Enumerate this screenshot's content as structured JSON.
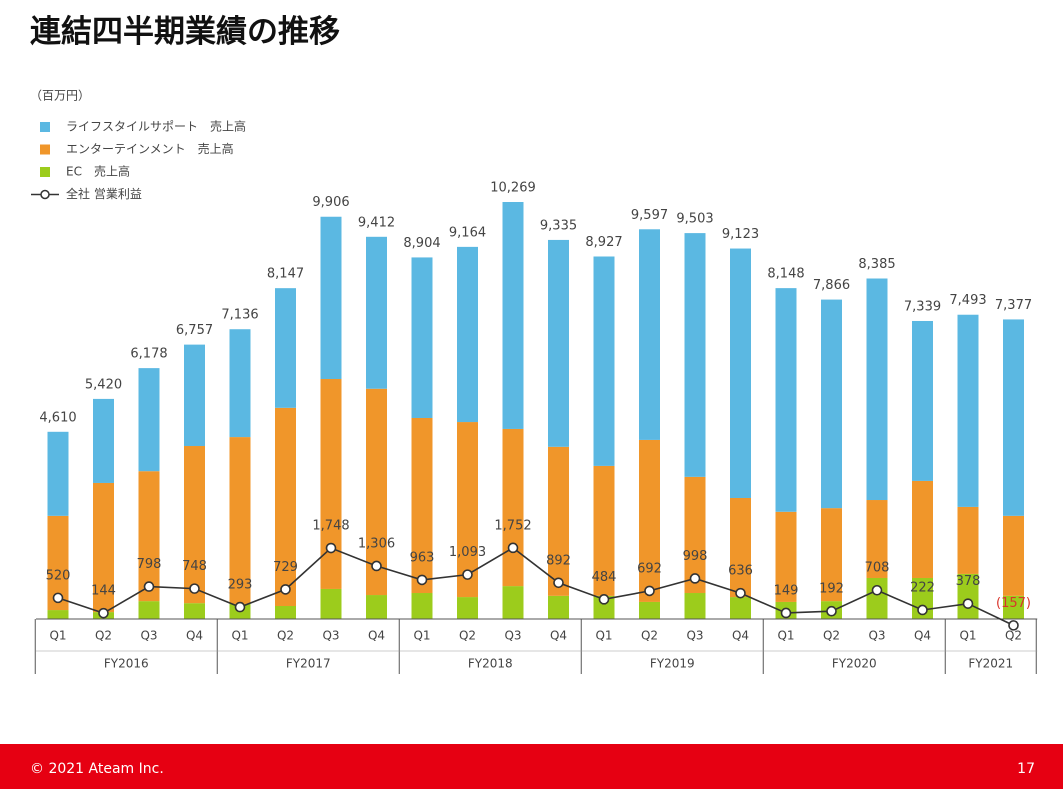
{
  "chart_data": {
    "type": "stacked_bar_line",
    "title": "連結四半期業績の推移",
    "unit_label": "（百万円）",
    "groups": [
      {
        "name": "FY2016",
        "categories": [
          "Q1",
          "Q2",
          "Q3",
          "Q4"
        ]
      },
      {
        "name": "FY2017",
        "categories": [
          "Q1",
          "Q2",
          "Q3",
          "Q4"
        ]
      },
      {
        "name": "FY2018",
        "categories": [
          "Q1",
          "Q2",
          "Q3",
          "Q4"
        ]
      },
      {
        "name": "FY2019",
        "categories": [
          "Q1",
          "Q2",
          "Q3",
          "Q4"
        ]
      },
      {
        "name": "FY2020",
        "categories": [
          "Q1",
          "Q2",
          "Q3",
          "Q4"
        ]
      },
      {
        "name": "FY2021",
        "categories": [
          "Q1",
          "Q2"
        ]
      }
    ],
    "series": [
      {
        "name": "ライフスタイルサポート　売上高",
        "type": "bar",
        "color": "#5bb8e2",
        "values": [
          2070,
          2070,
          2538,
          2497,
          2656,
          2947,
          3996,
          3742,
          3954,
          4314,
          5589,
          5095,
          5157,
          5187,
          6003,
          6143,
          5508,
          5136,
          5455,
          3939,
          4733,
          4837
        ]
      },
      {
        "name": "エンターテインメント　売上高",
        "type": "bar",
        "color": "#f0962a",
        "values": [
          2320,
          3180,
          3200,
          3870,
          4110,
          4880,
          5170,
          5080,
          4310,
          4310,
          3870,
          3670,
          3200,
          3990,
          2860,
          2440,
          2220,
          2290,
          1920,
          2390,
          1650,
          1970
        ]
      },
      {
        "name": "EC　売上高",
        "type": "bar",
        "color": "#9ccc1c",
        "values": [
          220,
          170,
          440,
          390,
          370,
          320,
          740,
          590,
          640,
          540,
          810,
          570,
          570,
          420,
          640,
          540,
          420,
          440,
          1010,
          1010,
          1110,
          570
        ]
      },
      {
        "name": "全社 営業利益",
        "type": "line",
        "color": "#333333",
        "values": [
          520,
          144,
          798,
          748,
          293,
          729,
          1748,
          1306,
          963,
          1093,
          1752,
          892,
          484,
          692,
          998,
          636,
          149,
          192,
          708,
          222,
          378,
          -157
        ],
        "value_labels": [
          "520",
          "144",
          "798",
          "748",
          "293",
          "729",
          "1,748",
          "1,306",
          "963",
          "1,093",
          "1,752",
          "892",
          "484",
          "692",
          "998",
          "636",
          "149",
          "192",
          "708",
          "222",
          "378",
          "(157)"
        ],
        "negative_label_color": "#d9342b"
      }
    ],
    "totals": {
      "values": [
        4610,
        5420,
        6178,
        6757,
        7136,
        8147,
        9906,
        9412,
        8904,
        9164,
        10269,
        9335,
        8927,
        9597,
        9503,
        9123,
        8148,
        7866,
        8385,
        7339,
        7493,
        7377
      ],
      "value_labels": [
        "4,610",
        "5,420",
        "6,178",
        "6,757",
        "7,136",
        "8,147",
        "9,906",
        "9,412",
        "8,904",
        "9,164",
        "10,269",
        "9,335",
        "8,927",
        "9,597",
        "9,503",
        "9,123",
        "8,148",
        "7,866",
        "8,385",
        "7,339",
        "7,493",
        "7,377"
      ]
    },
    "ylim": [
      0,
      10269
    ],
    "footer": {
      "copyright": "© 2021 Ateam Inc.",
      "page": "17",
      "color": "#e60012"
    }
  }
}
